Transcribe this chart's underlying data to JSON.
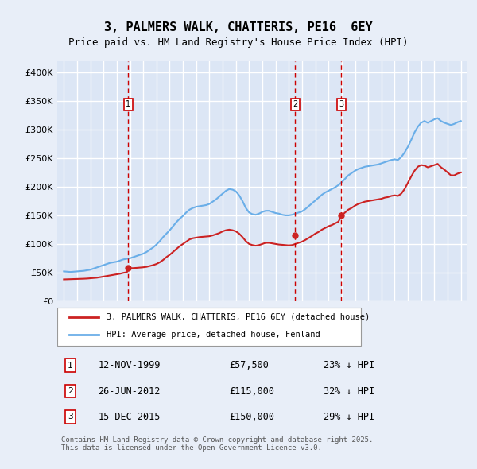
{
  "title": "3, PALMERS WALK, CHATTERIS, PE16  6EY",
  "subtitle": "Price paid vs. HM Land Registry's House Price Index (HPI)",
  "ylabel": "",
  "xlabel": "",
  "ylim": [
    0,
    420000
  ],
  "yticks": [
    0,
    50000,
    100000,
    150000,
    200000,
    250000,
    300000,
    350000,
    400000
  ],
  "ytick_labels": [
    "£0",
    "£50K",
    "£100K",
    "£150K",
    "£200K",
    "£250K",
    "£300K",
    "£350K",
    "£400K"
  ],
  "background_color": "#e8eef8",
  "plot_bg_color": "#dce6f5",
  "grid_color": "#ffffff",
  "hpi_color": "#6aaee8",
  "price_color": "#cc2222",
  "vline_color": "#cc0000",
  "transactions": [
    {
      "num": 1,
      "date": "12-NOV-1999",
      "price": 57500,
      "pct": "23%",
      "year": 1999.87
    },
    {
      "num": 2,
      "date": "26-JUN-2012",
      "price": 115000,
      "pct": "32%",
      "year": 2012.49
    },
    {
      "num": 3,
      "date": "15-DEC-2015",
      "price": 150000,
      "pct": "29%",
      "year": 2015.96
    }
  ],
  "legend_label_price": "3, PALMERS WALK, CHATTERIS, PE16 6EY (detached house)",
  "legend_label_hpi": "HPI: Average price, detached house, Fenland",
  "footnote": "Contains HM Land Registry data © Crown copyright and database right 2025.\nThis data is licensed under the Open Government Licence v3.0.",
  "title_fontsize": 11,
  "subtitle_fontsize": 9,
  "tick_fontsize": 8,
  "hpi_data_x": [
    1995.0,
    1995.25,
    1995.5,
    1995.75,
    1996.0,
    1996.25,
    1996.5,
    1996.75,
    1997.0,
    1997.25,
    1997.5,
    1997.75,
    1998.0,
    1998.25,
    1998.5,
    1998.75,
    1999.0,
    1999.25,
    1999.5,
    1999.75,
    2000.0,
    2000.25,
    2000.5,
    2000.75,
    2001.0,
    2001.25,
    2001.5,
    2001.75,
    2002.0,
    2002.25,
    2002.5,
    2002.75,
    2003.0,
    2003.25,
    2003.5,
    2003.75,
    2004.0,
    2004.25,
    2004.5,
    2004.75,
    2005.0,
    2005.25,
    2005.5,
    2005.75,
    2006.0,
    2006.25,
    2006.5,
    2006.75,
    2007.0,
    2007.25,
    2007.5,
    2007.75,
    2008.0,
    2008.25,
    2008.5,
    2008.75,
    2009.0,
    2009.25,
    2009.5,
    2009.75,
    2010.0,
    2010.25,
    2010.5,
    2010.75,
    2011.0,
    2011.25,
    2011.5,
    2011.75,
    2012.0,
    2012.25,
    2012.5,
    2012.75,
    2013.0,
    2013.25,
    2013.5,
    2013.75,
    2014.0,
    2014.25,
    2014.5,
    2014.75,
    2015.0,
    2015.25,
    2015.5,
    2015.75,
    2016.0,
    2016.25,
    2016.5,
    2016.75,
    2017.0,
    2017.25,
    2017.5,
    2017.75,
    2018.0,
    2018.25,
    2018.5,
    2018.75,
    2019.0,
    2019.25,
    2019.5,
    2019.75,
    2020.0,
    2020.25,
    2020.5,
    2020.75,
    2021.0,
    2021.25,
    2021.5,
    2021.75,
    2022.0,
    2022.25,
    2022.5,
    2022.75,
    2023.0,
    2023.25,
    2023.5,
    2023.75,
    2024.0,
    2024.25,
    2024.5,
    2024.75,
    2025.0
  ],
  "hpi_data_y": [
    52000,
    51500,
    51000,
    51500,
    52000,
    52500,
    53000,
    54000,
    55000,
    57000,
    59000,
    61000,
    63000,
    65000,
    67000,
    68000,
    69000,
    71000,
    73000,
    74000,
    75000,
    77000,
    79000,
    81000,
    83000,
    86000,
    90000,
    94000,
    99000,
    105000,
    112000,
    118000,
    124000,
    131000,
    138000,
    144000,
    149000,
    155000,
    160000,
    163000,
    165000,
    166000,
    167000,
    168000,
    170000,
    174000,
    178000,
    183000,
    188000,
    193000,
    196000,
    195000,
    192000,
    185000,
    175000,
    163000,
    155000,
    152000,
    151000,
    153000,
    156000,
    158000,
    158000,
    156000,
    154000,
    153000,
    151000,
    150000,
    150000,
    151000,
    153000,
    155000,
    157000,
    161000,
    166000,
    171000,
    176000,
    181000,
    186000,
    190000,
    193000,
    196000,
    199000,
    203000,
    208000,
    214000,
    220000,
    224000,
    228000,
    231000,
    233000,
    235000,
    236000,
    237000,
    238000,
    239000,
    241000,
    243000,
    245000,
    247000,
    248000,
    247000,
    252000,
    260000,
    270000,
    282000,
    295000,
    305000,
    312000,
    315000,
    312000,
    315000,
    318000,
    320000,
    315000,
    312000,
    310000,
    308000,
    310000,
    313000,
    315000
  ],
  "price_data_x": [
    1995.0,
    1995.25,
    1995.5,
    1995.75,
    1996.0,
    1996.25,
    1996.5,
    1996.75,
    1997.0,
    1997.25,
    1997.5,
    1997.75,
    1998.0,
    1998.25,
    1998.5,
    1998.75,
    1999.0,
    1999.25,
    1999.5,
    1999.75,
    2000.0,
    2000.25,
    2000.5,
    2000.75,
    2001.0,
    2001.25,
    2001.5,
    2001.75,
    2002.0,
    2002.25,
    2002.5,
    2002.75,
    2003.0,
    2003.25,
    2003.5,
    2003.75,
    2004.0,
    2004.25,
    2004.5,
    2004.75,
    2005.0,
    2005.25,
    2005.5,
    2005.75,
    2006.0,
    2006.25,
    2006.5,
    2006.75,
    2007.0,
    2007.25,
    2007.5,
    2007.75,
    2008.0,
    2008.25,
    2008.5,
    2008.75,
    2009.0,
    2009.25,
    2009.5,
    2009.75,
    2010.0,
    2010.25,
    2010.5,
    2010.75,
    2011.0,
    2011.25,
    2011.5,
    2011.75,
    2012.0,
    2012.25,
    2012.5,
    2012.75,
    2013.0,
    2013.25,
    2013.5,
    2013.75,
    2014.0,
    2014.25,
    2014.5,
    2014.75,
    2015.0,
    2015.25,
    2015.5,
    2015.75,
    2016.0,
    2016.25,
    2016.5,
    2016.75,
    2017.0,
    2017.25,
    2017.5,
    2017.75,
    2018.0,
    2018.25,
    2018.5,
    2018.75,
    2019.0,
    2019.25,
    2019.5,
    2019.75,
    2020.0,
    2020.25,
    2020.5,
    2020.75,
    2021.0,
    2021.25,
    2021.5,
    2021.75,
    2022.0,
    2022.25,
    2022.5,
    2022.75,
    2023.0,
    2023.25,
    2023.5,
    2023.75,
    2024.0,
    2024.25,
    2024.5,
    2024.75,
    2025.0
  ],
  "price_data_y": [
    38000,
    38200,
    38400,
    38600,
    38800,
    39000,
    39200,
    39500,
    40000,
    40500,
    41000,
    42000,
    43000,
    44000,
    45000,
    46000,
    47000,
    48000,
    49500,
    50500,
    57500,
    57800,
    58200,
    58700,
    59200,
    60000,
    61500,
    63000,
    65000,
    68000,
    72000,
    77000,
    81000,
    86000,
    91000,
    96000,
    100000,
    104000,
    108000,
    110000,
    111000,
    112000,
    112500,
    113000,
    113500,
    115000,
    117000,
    119000,
    122000,
    124000,
    125000,
    124000,
    122000,
    118000,
    112000,
    105000,
    100000,
    98000,
    97000,
    98000,
    100000,
    102000,
    102000,
    101000,
    100000,
    99000,
    98500,
    98000,
    97500,
    98000,
    100000,
    102000,
    104000,
    107000,
    110500,
    114000,
    118000,
    121000,
    125000,
    128000,
    131000,
    133000,
    136000,
    139000,
    150000,
    155000,
    160000,
    163000,
    167000,
    170000,
    172000,
    174000,
    175000,
    176000,
    177000,
    178000,
    179000,
    181000,
    182000,
    184000,
    185000,
    184000,
    188000,
    196000,
    207000,
    218000,
    228000,
    235000,
    238000,
    237000,
    234000,
    236000,
    238000,
    240000,
    234000,
    230000,
    225000,
    220000,
    220000,
    223000,
    225000
  ]
}
